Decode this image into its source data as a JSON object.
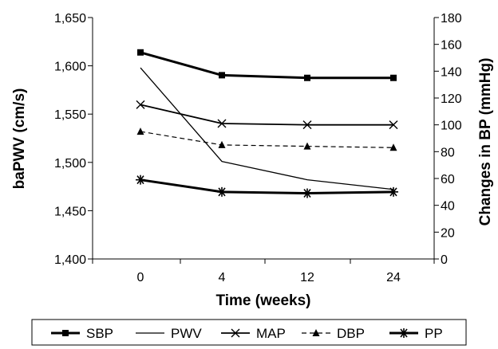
{
  "chart_data": {
    "type": "line",
    "xlabel": "Time (weeks)",
    "ylabel_left": "baPWV (cm/s)",
    "ylabel_right": "Changes in BP (mmHg)",
    "categories": [
      "0",
      "4",
      "12",
      "24"
    ],
    "ylim_left": [
      1400,
      1650
    ],
    "yticks_left": [
      "1,400",
      "1,450",
      "1,500",
      "1,550",
      "1,600",
      "1,650"
    ],
    "ylim_right": [
      0,
      180
    ],
    "yticks_right": [
      "0",
      "20",
      "40",
      "60",
      "80",
      "100",
      "120",
      "140",
      "160",
      "180"
    ],
    "grid": false,
    "legend_position": "bottom",
    "series": [
      {
        "name": "SBP",
        "axis": "right",
        "marker": "square",
        "style": "bold",
        "values": [
          154,
          137,
          135,
          135
        ]
      },
      {
        "name": "PWV",
        "axis": "left",
        "marker": "none",
        "style": "thin",
        "values": [
          1598,
          1501,
          1482,
          1472
        ]
      },
      {
        "name": "MAP",
        "axis": "right",
        "marker": "x",
        "style": "medium",
        "values": [
          115,
          101,
          100,
          100
        ]
      },
      {
        "name": "DBP",
        "axis": "right",
        "marker": "triangle",
        "style": "dashed",
        "values": [
          95,
          85,
          84,
          83
        ]
      },
      {
        "name": "PP",
        "axis": "right",
        "marker": "asterisk",
        "style": "bold",
        "values": [
          59,
          50,
          49,
          50
        ]
      }
    ]
  }
}
